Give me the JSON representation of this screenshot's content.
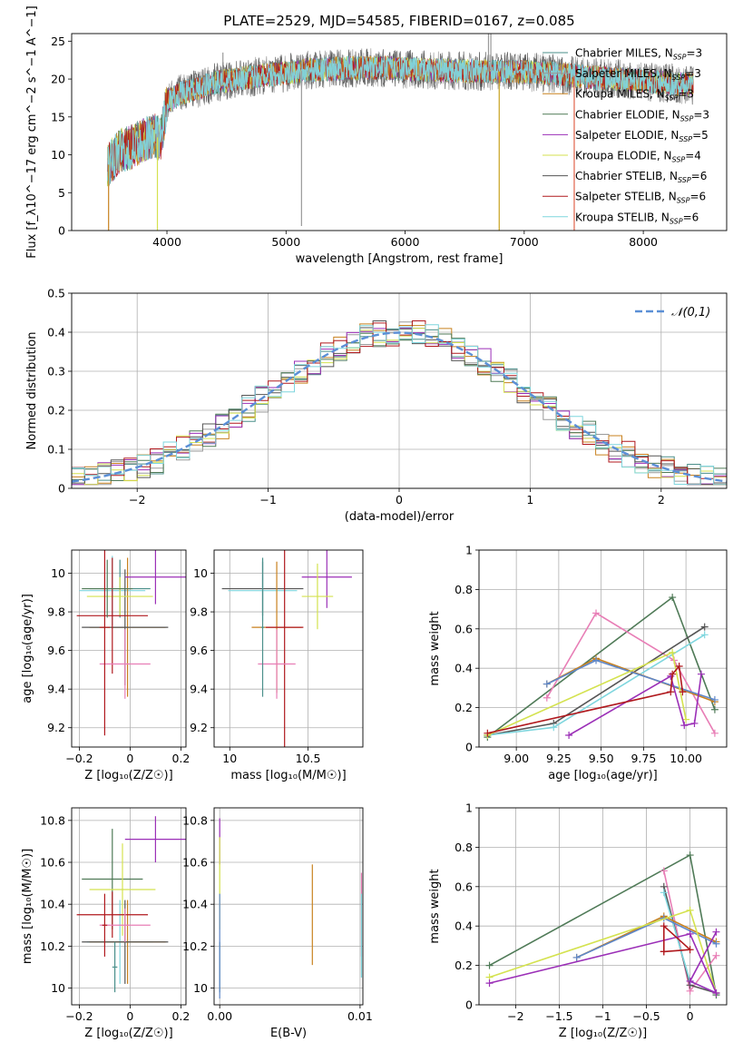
{
  "figure_title": "PLATE=2529, MJD=54585, FIBERID=0167, z=0.085",
  "colors": {
    "grid": "#b0b0b0",
    "series": [
      "#4a8f8a",
      "#9a9a9a",
      "#c8811e",
      "#4f7a57",
      "#9b2fb7",
      "#d4e24f",
      "#555555",
      "#b0191e",
      "#7fd6de"
    ],
    "normal_curve": "#5b8fd6",
    "extra_pink": "#e87eb6",
    "extra_blue": "#5e87c9"
  },
  "chart_data": [
    {
      "id": "spectrum",
      "type": "line",
      "xlabel": "wavelength [Angstrom, rest frame]",
      "ylabel": "Flux [f_λ10^−17 erg cm^−2 s^−1 A^−1]",
      "xlim": [
        3200,
        8700
      ],
      "ylim": [
        0,
        26
      ],
      "xticks": [
        4000,
        5000,
        6000,
        7000,
        8000
      ],
      "yticks": [
        0,
        5,
        10,
        15,
        20,
        25
      ],
      "legend_position": "top-right",
      "series_names": [
        "Chabrier MILES, N_SSP=3",
        "Salpeter MILES, N_SSP=3",
        "Kroupa MILES, N_SSP=3",
        "Chabrier ELODIE, N_SSP=3",
        "Salpeter ELODIE, N_SSP=5",
        "Kroupa ELODIE, N_SSP=4",
        "Chabrier STELIB, N_SSP=6",
        "Salpeter STELIB, N_SSP=6",
        "Kroupa STELIB, N_SSP=6"
      ],
      "continuum": {
        "x": [
          3500,
          3600,
          3700,
          3800,
          3900,
          3950,
          4000,
          4100,
          4200,
          4400,
          4600,
          4800,
          5000,
          5200,
          5500,
          5800,
          6000,
          6300,
          6600,
          6900,
          7200,
          7500,
          7800,
          8100,
          8400,
          8700
        ],
        "y": [
          8.5,
          10.5,
          11,
          12,
          12.5,
          12,
          17,
          18,
          18.5,
          19.5,
          20,
          20.5,
          20.8,
          21.2,
          21.4,
          21.5,
          21.3,
          21.2,
          21,
          21,
          20.8,
          20.3,
          20,
          19.6,
          19.2,
          19
        ]
      },
      "spikes": [
        {
          "x": 3510,
          "y": 0
        },
        {
          "x": 3920,
          "y": 0
        },
        {
          "x": 4470,
          "y": 23.5
        },
        {
          "x": 5130,
          "y": 0.6
        },
        {
          "x": 6790,
          "y": 0
        },
        {
          "x": 7420,
          "y": 0
        },
        {
          "x": 6700,
          "y": 26
        },
        {
          "x": 6720,
          "y": 26
        }
      ]
    },
    {
      "id": "residuals",
      "type": "step",
      "xlabel": "(data-model)/error",
      "ylabel": "Normed distribution",
      "xlim": [
        -2.5,
        2.5
      ],
      "ylim": [
        0,
        0.5
      ],
      "xticks": [
        -2,
        -1,
        0,
        1,
        2
      ],
      "yticks": [
        0.0,
        0.1,
        0.2,
        0.3,
        0.4,
        0.5
      ],
      "legend": "𝒩(0,1)",
      "legend_position": "top-right",
      "bin_width": 0.1,
      "bin_start": -2.5,
      "normal": {
        "mean": 0,
        "sigma": 1
      }
    },
    {
      "id": "age_vs_Z",
      "type": "errorbar",
      "xlabel": "Z [log₁₀(Z/Z☉)]",
      "ylabel": "age  [log₁₀(age/yr)]",
      "xlim": [
        -0.23,
        0.22
      ],
      "ylim": [
        9.1,
        10.12
      ],
      "xticks": [
        -0.2,
        0.0,
        0.2
      ],
      "yticks": [
        9.2,
        9.4,
        9.6,
        9.8,
        10.0
      ],
      "points": [
        {
          "x": -0.04,
          "xerr": 0.12,
          "y": 9.92,
          "yerr": 0.15,
          "color": "#4a8f8a"
        },
        {
          "x": -0.07,
          "xerr": 0.13,
          "y": 9.91,
          "yerr": 0.18,
          "color": "#7fd6de"
        },
        {
          "x": -0.01,
          "xerr": 0.15,
          "y": 9.72,
          "yerr": 0.36,
          "color": "#c8811e"
        },
        {
          "x": -0.02,
          "xerr": 0.17,
          "y": 9.72,
          "yerr": 0.3,
          "color": "#555555"
        },
        {
          "x": 0.1,
          "xerr": 0.12,
          "y": 9.98,
          "yerr": 0.14,
          "color": "#9b2fb7"
        },
        {
          "x": -0.04,
          "xerr": 0.13,
          "y": 9.88,
          "yerr": 0.1,
          "color": "#d4e24f"
        },
        {
          "x": -0.07,
          "xerr": 0.14,
          "y": 9.78,
          "yerr": 0.3,
          "color": "#b0191e"
        },
        {
          "x": -0.09,
          "xerr": 0.1,
          "y": 9.92,
          "yerr": 0.15,
          "color": "#4f7a57"
        },
        {
          "x": -0.02,
          "xerr": 0.1,
          "y": 9.53,
          "yerr": 0.18,
          "color": "#e87eb6"
        },
        {
          "x": -0.1,
          "xerr": 0.02,
          "y": 9.72,
          "yerr": 0.56,
          "color": "#b0191e"
        }
      ]
    },
    {
      "id": "age_vs_mass",
      "type": "errorbar",
      "xlabel": "mass [log₁₀(M/M☉)]",
      "ylabel": "",
      "xlim": [
        9.9,
        10.85
      ],
      "ylim": [
        9.1,
        10.12
      ],
      "xticks": [
        10.0,
        10.5
      ],
      "yticks": [
        9.2,
        9.4,
        9.6,
        9.8,
        10.0
      ],
      "points": [
        {
          "x": 10.21,
          "xerr": 0.26,
          "y": 9.92,
          "yerr": 0.14,
          "color": "#555555"
        },
        {
          "x": 10.21,
          "xerr": 0.22,
          "y": 9.91,
          "yerr": 0.16,
          "color": "#7fd6de"
        },
        {
          "x": 10.3,
          "xerr": 0.16,
          "y": 9.72,
          "yerr": 0.34,
          "color": "#c8811e"
        },
        {
          "x": 10.35,
          "xerr": 0.12,
          "y": 9.72,
          "yerr": 0.62,
          "color": "#b0191e"
        },
        {
          "x": 10.62,
          "xerr": 0.16,
          "y": 9.98,
          "yerr": 0.16,
          "color": "#9b2fb7"
        },
        {
          "x": 10.56,
          "xerr": 0.1,
          "y": 9.88,
          "yerr": 0.17,
          "color": "#d4e24f"
        },
        {
          "x": 10.3,
          "xerr": 0.12,
          "y": 9.53,
          "yerr": 0.18,
          "color": "#e87eb6"
        },
        {
          "x": 10.21,
          "xerr": 0.01,
          "y": 9.72,
          "yerr": 0.36,
          "color": "#4a8f8a"
        }
      ]
    },
    {
      "id": "massweight_vs_age",
      "type": "line",
      "xlabel": "age  [log₁₀(age/yr)]",
      "ylabel": "mass weight",
      "xlim": [
        8.78,
        10.24
      ],
      "ylim": [
        0,
        1.0
      ],
      "xticks": [
        9.0,
        9.25,
        9.5,
        9.75,
        10.0
      ],
      "xtick_labels": [
        "9.00",
        "9.25",
        "9.50",
        "9.75",
        "10.00"
      ],
      "yticks": [
        0.0,
        0.2,
        0.4,
        0.6,
        0.8,
        1.0
      ],
      "series": [
        {
          "color": "#4f7a57",
          "x": [
            8.83,
            9.92,
            10.17
          ],
          "y": [
            0.05,
            0.76,
            0.19
          ]
        },
        {
          "color": "#e87eb6",
          "x": [
            9.18,
            9.47,
            9.93,
            10.17
          ],
          "y": [
            0.25,
            0.68,
            0.44,
            0.07
          ]
        },
        {
          "color": "#555555",
          "x": [
            8.83,
            9.22,
            10.11
          ],
          "y": [
            0.06,
            0.12,
            0.61
          ]
        },
        {
          "color": "#7fd6de",
          "x": [
            8.83,
            9.22,
            10.11
          ],
          "y": [
            0.06,
            0.1,
            0.57
          ]
        },
        {
          "color": "#c8811e",
          "x": [
            9.18,
            9.47,
            10.17
          ],
          "y": [
            0.32,
            0.45,
            0.23
          ]
        },
        {
          "color": "#5e87c9",
          "x": [
            9.18,
            9.47,
            10.17
          ],
          "y": [
            0.32,
            0.44,
            0.24
          ]
        },
        {
          "color": "#d4e24f",
          "x": [
            8.83,
            9.92,
            10.0
          ],
          "y": [
            0.06,
            0.48,
            0.14
          ]
        },
        {
          "color": "#9b2fb7",
          "x": [
            9.31,
            9.91,
            9.99,
            10.05,
            10.09
          ],
          "y": [
            0.06,
            0.36,
            0.11,
            0.12,
            0.37
          ]
        },
        {
          "color": "#b0191e",
          "x": [
            8.83,
            9.91,
            9.92,
            9.96,
            9.98
          ],
          "y": [
            0.07,
            0.28,
            0.37,
            0.41,
            0.28
          ]
        }
      ]
    },
    {
      "id": "mass_vs_Z",
      "type": "errorbar",
      "xlabel": "Z [log₁₀(Z/Z☉)]",
      "ylabel": "mass [log₁₀(M/M☉)]",
      "xlim": [
        -0.23,
        0.22
      ],
      "ylim": [
        9.92,
        10.86
      ],
      "xticks": [
        -0.2,
        0.0,
        0.2
      ],
      "yticks": [
        10.0,
        10.2,
        10.4,
        10.6,
        10.8
      ],
      "points": [
        {
          "x": -0.07,
          "xerr": 0.12,
          "y": 10.52,
          "yerr": 0.24,
          "color": "#4f7a57"
        },
        {
          "x": -0.04,
          "xerr": 0.13,
          "y": 10.22,
          "yerr": 0.2,
          "color": "#7fd6de"
        },
        {
          "x": -0.01,
          "xerr": 0.15,
          "y": 10.22,
          "yerr": 0.2,
          "color": "#c8811e"
        },
        {
          "x": -0.02,
          "xerr": 0.17,
          "y": 10.22,
          "yerr": 0.2,
          "color": "#555555"
        },
        {
          "x": 0.1,
          "xerr": 0.12,
          "y": 10.71,
          "yerr": 0.11,
          "color": "#9b2fb7"
        },
        {
          "x": -0.03,
          "xerr": 0.13,
          "y": 10.47,
          "yerr": 0.22,
          "color": "#d4e24f"
        },
        {
          "x": -0.07,
          "xerr": 0.14,
          "y": 10.35,
          "yerr": 0.11,
          "color": "#b0191e"
        },
        {
          "x": -0.02,
          "xerr": 0.1,
          "y": 10.3,
          "yerr": 0.08,
          "color": "#e87eb6"
        },
        {
          "x": -0.1,
          "xerr": 0.01,
          "y": 10.3,
          "yerr": 0.15,
          "color": "#b0191e"
        },
        {
          "x": -0.06,
          "xerr": 0.01,
          "y": 10.1,
          "yerr": 0.12,
          "color": "#4a8f8a"
        }
      ]
    },
    {
      "id": "mass_vs_EBV",
      "type": "errorbar",
      "xlabel": "E(B-V)",
      "ylabel": "",
      "xlim": [
        -0.0004,
        0.0102
      ],
      "ylim": [
        9.92,
        10.86
      ],
      "xticks": [
        0.0,
        0.01
      ],
      "xtick_labels": [
        "0.00",
        "0.01"
      ],
      "yticks": [
        10.0,
        10.2,
        10.4,
        10.6,
        10.8
      ],
      "points": [
        {
          "x": 0.0,
          "y": 10.7,
          "yerr": 0.11,
          "color": "#9b2fb7"
        },
        {
          "x": 0.0,
          "y": 10.5,
          "yerr": 0.22,
          "color": "#d4e24f"
        },
        {
          "x": 0.0,
          "y": 10.1,
          "yerr": 0.12,
          "color": "#4a8f8a"
        },
        {
          "x": 0.0,
          "y": 10.2,
          "yerr": 0.25,
          "color": "#5e87c9"
        },
        {
          "x": 0.0066,
          "y": 10.35,
          "yerr": 0.24,
          "color": "#c8811e"
        },
        {
          "x": 0.0101,
          "y": 10.35,
          "yerr": 0.2,
          "color": "#e87eb6"
        },
        {
          "x": 0.0101,
          "y": 10.25,
          "yerr": 0.2,
          "color": "#7fd6de"
        }
      ]
    },
    {
      "id": "massweight_vs_Z",
      "type": "line",
      "xlabel": "Z [log₁₀(Z/Z☉)]",
      "ylabel": "mass weight",
      "xlim": [
        -2.42,
        0.42
      ],
      "ylim": [
        0,
        1.0
      ],
      "xticks": [
        -2.0,
        -1.5,
        -1.0,
        -0.5,
        0.0
      ],
      "yticks": [
        0.0,
        0.2,
        0.4,
        0.6,
        0.8,
        1.0
      ],
      "series": [
        {
          "color": "#4f7a57",
          "x": [
            -2.3,
            0.0,
            0.3
          ],
          "y": [
            0.2,
            0.76,
            0.05
          ]
        },
        {
          "color": "#e87eb6",
          "x": [
            -0.3,
            0.0,
            0.3
          ],
          "y": [
            0.68,
            0.07,
            0.25
          ]
        },
        {
          "color": "#555555",
          "x": [
            -0.3,
            0.0,
            0.3
          ],
          "y": [
            0.6,
            0.1,
            0.06
          ]
        },
        {
          "color": "#7fd6de",
          "x": [
            -0.3,
            0.0,
            0.3
          ],
          "y": [
            0.57,
            0.12,
            0.06
          ]
        },
        {
          "color": "#c8811e",
          "x": [
            -1.3,
            -0.3,
            0.3
          ],
          "y": [
            0.24,
            0.45,
            0.32
          ]
        },
        {
          "color": "#5e87c9",
          "x": [
            -1.3,
            -0.3,
            0.3
          ],
          "y": [
            0.24,
            0.44,
            0.31
          ]
        },
        {
          "color": "#d4e24f",
          "x": [
            -2.3,
            0.0,
            0.3
          ],
          "y": [
            0.14,
            0.48,
            0.06
          ]
        },
        {
          "color": "#9b2fb7",
          "x": [
            -2.3,
            0.0,
            0.3,
            0.0,
            0.3
          ],
          "y": [
            0.11,
            0.36,
            0.06,
            0.12,
            0.37
          ]
        },
        {
          "color": "#b0191e",
          "x": [
            -0.3,
            -0.3,
            0.0,
            -0.3
          ],
          "y": [
            0.27,
            0.4,
            0.28,
            0.27
          ]
        }
      ]
    }
  ]
}
